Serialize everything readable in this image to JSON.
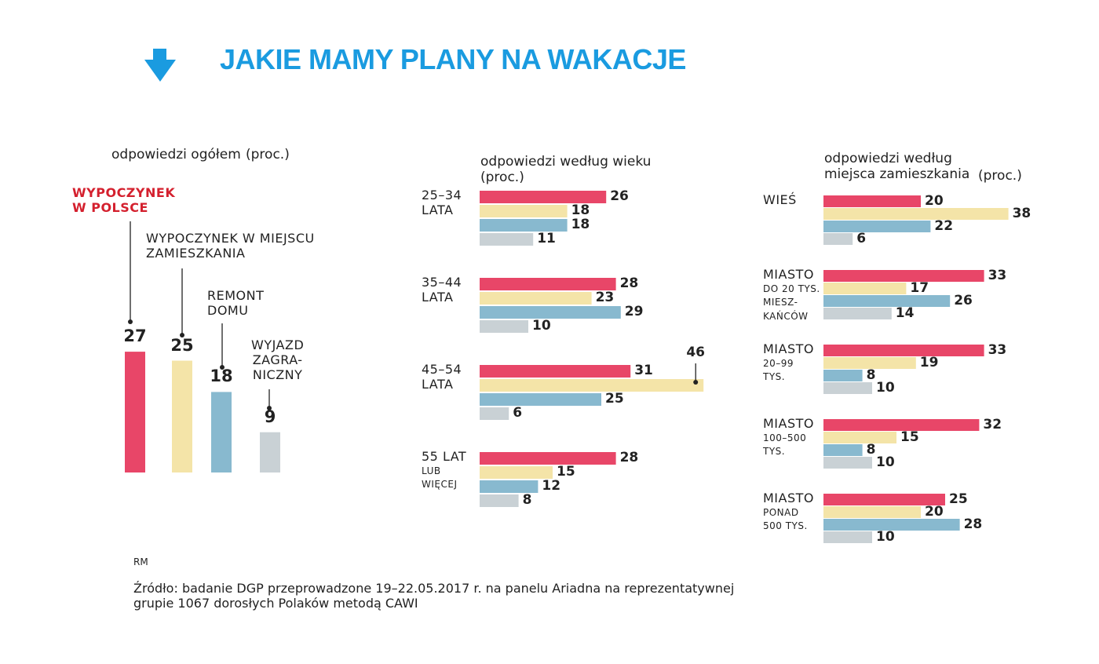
{
  "title": "JAKIE MAMY PLANY NA WAKACJE",
  "chart_data": [
    {
      "type": "bar",
      "subtitle": "odpowiedzi ogółem",
      "unit": "(proc.)",
      "categories": [
        "WYPOCZYNEK\nW POLSCE",
        "WYPOCZYNEK W MIEJSCU\nZAMIESZKANIA",
        "REMONT\nDOMU",
        "WYJAZD\nZAGRA-\nNICZNY"
      ],
      "values": [
        27,
        25,
        18,
        9
      ],
      "colors": [
        "#e84668",
        "#f4e4a8",
        "#88b9cf",
        "#c9d1d5"
      ]
    },
    {
      "type": "barh",
      "subtitle": "odpowiedzi według wieku",
      "unit": "(proc.)",
      "categories": [
        "25–34\nLATA",
        "35–44\nLATA",
        "45–54\nLATA",
        "55 LAT"
      ],
      "category_notes": [
        null,
        null,
        null,
        "LUB\nWIĘCEJ"
      ],
      "series": [
        {
          "color": "#e84668",
          "values": [
            26,
            28,
            31,
            28
          ]
        },
        {
          "color": "#f4e4a8",
          "values": [
            18,
            23,
            46,
            15
          ]
        },
        {
          "color": "#88b9cf",
          "values": [
            18,
            29,
            25,
            12
          ]
        },
        {
          "color": "#c9d1d5",
          "values": [
            11,
            10,
            6,
            8
          ]
        }
      ]
    },
    {
      "type": "barh",
      "subtitle": "odpowiedzi według\nmiejsca zamieszkania",
      "unit": "(proc.)",
      "categories": [
        "WIEŚ",
        "MIASTO",
        "MIASTO",
        "MIASTO",
        "MIASTO"
      ],
      "category_notes": [
        null,
        "DO 20 TYS.\nMIESZ-\nKAŃCÓW",
        "20–99\nTYS.",
        "100–500\nTYS.",
        "PONAD\n500 TYS."
      ],
      "series": [
        {
          "color": "#e84668",
          "values": [
            20,
            33,
            33,
            32,
            25
          ]
        },
        {
          "color": "#f4e4a8",
          "values": [
            38,
            17,
            19,
            15,
            20
          ]
        },
        {
          "color": "#88b9cf",
          "values": [
            22,
            26,
            8,
            8,
            28
          ]
        },
        {
          "color": "#c9d1d5",
          "values": [
            6,
            14,
            10,
            10,
            10
          ]
        }
      ]
    }
  ],
  "author": "RM",
  "source": "Źródło: badanie DGP przeprowadzone 19–22.05.2017 r. na panelu Ariadna na reprezentatywnej\ngrupie 1067 dorosłych Polaków metodą CAWI"
}
